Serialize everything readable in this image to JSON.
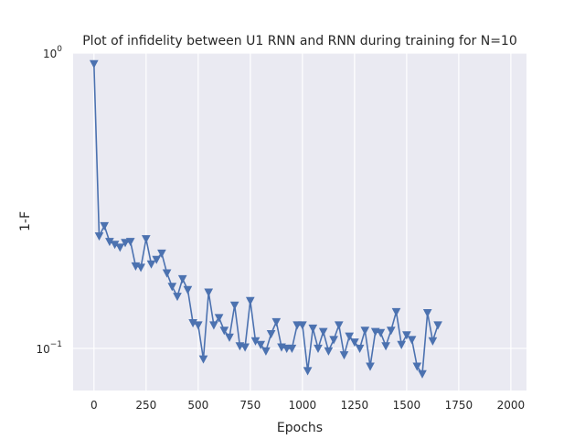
{
  "chart_data": {
    "type": "line",
    "title": "Plot of infidelity between U1 RNN and RNN during training for N=10",
    "xlabel": "Epochs",
    "ylabel": "1-F",
    "xlim": [
      -100,
      2075
    ],
    "ylim": [
      0.072,
      1.0
    ],
    "yscale": "log",
    "grid": true,
    "background": "#eaeaf2",
    "line_color": "#4c72b0",
    "marker": "triangle-down",
    "x_ticks": [
      0,
      250,
      500,
      750,
      1000,
      1250,
      1500,
      1750,
      2000
    ],
    "y_ticks": [
      {
        "base": "10",
        "exp": "0",
        "value": 1.0
      },
      {
        "base": "10",
        "exp": "−1",
        "value": 0.1
      }
    ],
    "series": [
      {
        "points": [
          [
            0,
            0.92
          ],
          [
            25,
            0.24
          ],
          [
            50,
            0.26
          ],
          [
            75,
            0.23
          ],
          [
            100,
            0.225
          ],
          [
            125,
            0.22
          ],
          [
            150,
            0.228
          ],
          [
            175,
            0.23
          ],
          [
            200,
            0.19
          ],
          [
            225,
            0.188
          ],
          [
            250,
            0.235
          ],
          [
            275,
            0.193
          ],
          [
            300,
            0.2
          ],
          [
            325,
            0.21
          ],
          [
            350,
            0.18
          ],
          [
            375,
            0.162
          ],
          [
            400,
            0.15
          ],
          [
            425,
            0.172
          ],
          [
            450,
            0.158
          ],
          [
            475,
            0.122
          ],
          [
            500,
            0.12
          ],
          [
            525,
            0.092
          ],
          [
            550,
            0.155
          ],
          [
            575,
            0.12
          ],
          [
            600,
            0.127
          ],
          [
            625,
            0.115
          ],
          [
            650,
            0.109
          ],
          [
            675,
            0.14
          ],
          [
            700,
            0.102
          ],
          [
            725,
            0.101
          ],
          [
            750,
            0.145
          ],
          [
            775,
            0.106
          ],
          [
            800,
            0.103
          ],
          [
            825,
            0.098
          ],
          [
            850,
            0.112
          ],
          [
            875,
            0.123
          ],
          [
            900,
            0.101
          ],
          [
            925,
            0.1
          ],
          [
            950,
            0.1
          ],
          [
            975,
            0.12
          ],
          [
            1000,
            0.12
          ],
          [
            1025,
            0.084
          ],
          [
            1050,
            0.117
          ],
          [
            1075,
            0.1
          ],
          [
            1100,
            0.114
          ],
          [
            1125,
            0.098
          ],
          [
            1150,
            0.107
          ],
          [
            1175,
            0.12
          ],
          [
            1200,
            0.095
          ],
          [
            1225,
            0.11
          ],
          [
            1250,
            0.105
          ],
          [
            1275,
            0.1
          ],
          [
            1300,
            0.115
          ],
          [
            1325,
            0.087
          ],
          [
            1350,
            0.114
          ],
          [
            1375,
            0.113
          ],
          [
            1400,
            0.102
          ],
          [
            1425,
            0.115
          ],
          [
            1450,
            0.133
          ],
          [
            1475,
            0.103
          ],
          [
            1500,
            0.111
          ],
          [
            1525,
            0.107
          ],
          [
            1550,
            0.087
          ],
          [
            1575,
            0.082
          ],
          [
            1600,
            0.132
          ],
          [
            1625,
            0.106
          ],
          [
            1650,
            0.12
          ]
        ]
      }
    ]
  }
}
